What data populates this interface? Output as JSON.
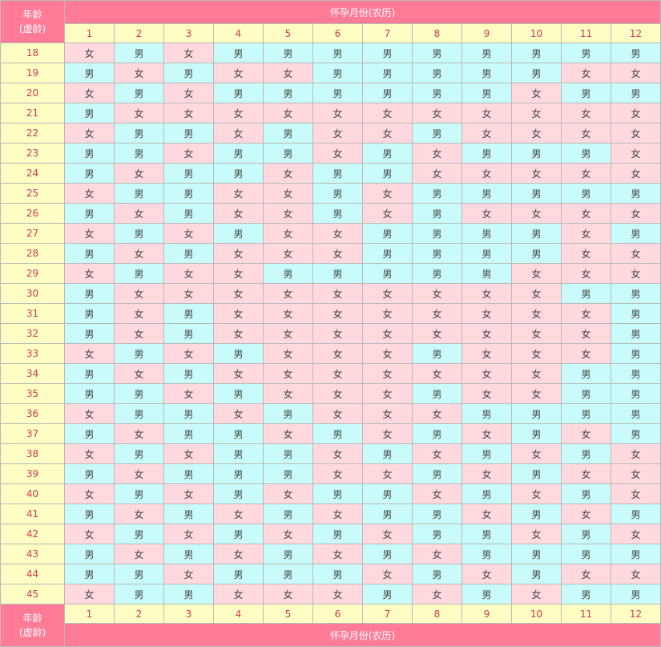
{
  "header": {
    "corner_line1": "年龄",
    "corner_line2": "(虚龄)",
    "title": "怀孕月份(农历)"
  },
  "months": [
    "1",
    "2",
    "3",
    "4",
    "5",
    "6",
    "7",
    "8",
    "9",
    "10",
    "11",
    "12"
  ],
  "labels": {
    "girl": "女",
    "boy": "男"
  },
  "colors": {
    "header": "#ff7b97",
    "label_bg": "#fdfdc4",
    "label_text": "#d23b4d",
    "girl_bg": "#ffd9de",
    "boy_bg": "#c9fbfb"
  },
  "rows": [
    {
      "age": "18",
      "cells": [
        "女",
        "男",
        "女",
        "男",
        "男",
        "男",
        "男",
        "男",
        "男",
        "男",
        "男",
        "男"
      ]
    },
    {
      "age": "19",
      "cells": [
        "男",
        "女",
        "男",
        "女",
        "女",
        "男",
        "男",
        "男",
        "男",
        "男",
        "女",
        "女"
      ]
    },
    {
      "age": "20",
      "cells": [
        "女",
        "男",
        "女",
        "男",
        "男",
        "男",
        "男",
        "男",
        "男",
        "女",
        "男",
        "男"
      ]
    },
    {
      "age": "21",
      "cells": [
        "男",
        "女",
        "女",
        "女",
        "女",
        "女",
        "女",
        "女",
        "女",
        "女",
        "女",
        "女"
      ]
    },
    {
      "age": "22",
      "cells": [
        "女",
        "男",
        "男",
        "女",
        "男",
        "女",
        "女",
        "男",
        "女",
        "女",
        "女",
        "女"
      ]
    },
    {
      "age": "23",
      "cells": [
        "男",
        "男",
        "女",
        "男",
        "男",
        "女",
        "男",
        "女",
        "男",
        "男",
        "男",
        "女"
      ]
    },
    {
      "age": "24",
      "cells": [
        "男",
        "女",
        "男",
        "男",
        "女",
        "男",
        "男",
        "女",
        "女",
        "女",
        "女",
        "女"
      ]
    },
    {
      "age": "25",
      "cells": [
        "女",
        "男",
        "男",
        "女",
        "女",
        "男",
        "女",
        "男",
        "男",
        "男",
        "男",
        "男"
      ]
    },
    {
      "age": "26",
      "cells": [
        "男",
        "女",
        "男",
        "女",
        "女",
        "男",
        "女",
        "男",
        "女",
        "女",
        "女",
        "女"
      ]
    },
    {
      "age": "27",
      "cells": [
        "女",
        "男",
        "女",
        "男",
        "女",
        "女",
        "男",
        "男",
        "男",
        "男",
        "女",
        "男"
      ]
    },
    {
      "age": "28",
      "cells": [
        "男",
        "女",
        "男",
        "女",
        "女",
        "女",
        "男",
        "男",
        "男",
        "男",
        "女",
        "女"
      ]
    },
    {
      "age": "29",
      "cells": [
        "女",
        "男",
        "女",
        "女",
        "男",
        "男",
        "男",
        "男",
        "男",
        "女",
        "女",
        "女"
      ]
    },
    {
      "age": "30",
      "cells": [
        "男",
        "女",
        "女",
        "女",
        "女",
        "女",
        "女",
        "女",
        "女",
        "女",
        "男",
        "男"
      ]
    },
    {
      "age": "31",
      "cells": [
        "男",
        "女",
        "男",
        "女",
        "女",
        "女",
        "女",
        "女",
        "女",
        "女",
        "女",
        "男"
      ]
    },
    {
      "age": "32",
      "cells": [
        "男",
        "女",
        "男",
        "女",
        "女",
        "女",
        "女",
        "女",
        "女",
        "女",
        "女",
        "男"
      ]
    },
    {
      "age": "33",
      "cells": [
        "女",
        "男",
        "女",
        "男",
        "女",
        "女",
        "女",
        "男",
        "女",
        "女",
        "女",
        "男"
      ]
    },
    {
      "age": "34",
      "cells": [
        "男",
        "女",
        "男",
        "女",
        "女",
        "女",
        "女",
        "女",
        "女",
        "女",
        "男",
        "男"
      ]
    },
    {
      "age": "35",
      "cells": [
        "男",
        "男",
        "女",
        "男",
        "女",
        "女",
        "女",
        "男",
        "女",
        "女",
        "男",
        "男"
      ]
    },
    {
      "age": "36",
      "cells": [
        "女",
        "男",
        "男",
        "女",
        "男",
        "女",
        "女",
        "女",
        "男",
        "男",
        "男",
        "男"
      ]
    },
    {
      "age": "37",
      "cells": [
        "男",
        "女",
        "男",
        "男",
        "女",
        "男",
        "女",
        "男",
        "女",
        "男",
        "女",
        "男"
      ]
    },
    {
      "age": "38",
      "cells": [
        "女",
        "男",
        "女",
        "男",
        "男",
        "女",
        "男",
        "女",
        "男",
        "女",
        "男",
        "女"
      ]
    },
    {
      "age": "39",
      "cells": [
        "男",
        "女",
        "男",
        "男",
        "男",
        "女",
        "女",
        "男",
        "女",
        "男",
        "女",
        "女"
      ]
    },
    {
      "age": "40",
      "cells": [
        "女",
        "男",
        "女",
        "男",
        "女",
        "男",
        "男",
        "女",
        "男",
        "女",
        "男",
        "女"
      ]
    },
    {
      "age": "41",
      "cells": [
        "男",
        "女",
        "男",
        "女",
        "男",
        "女",
        "男",
        "男",
        "女",
        "男",
        "女",
        "男"
      ]
    },
    {
      "age": "42",
      "cells": [
        "女",
        "男",
        "女",
        "男",
        "女",
        "男",
        "女",
        "男",
        "男",
        "女",
        "男",
        "女"
      ]
    },
    {
      "age": "43",
      "cells": [
        "男",
        "女",
        "男",
        "女",
        "男",
        "女",
        "男",
        "女",
        "男",
        "男",
        "男",
        "男"
      ]
    },
    {
      "age": "44",
      "cells": [
        "男",
        "男",
        "女",
        "男",
        "男",
        "男",
        "女",
        "男",
        "女",
        "男",
        "女",
        "女"
      ]
    },
    {
      "age": "45",
      "cells": [
        "女",
        "男",
        "男",
        "女",
        "女",
        "女",
        "男",
        "女",
        "男",
        "女",
        "男",
        "男"
      ]
    }
  ],
  "footer": {
    "corner_line1": "年龄",
    "corner_line2": "(虚龄)",
    "title": "怀孕月份(农历)"
  }
}
